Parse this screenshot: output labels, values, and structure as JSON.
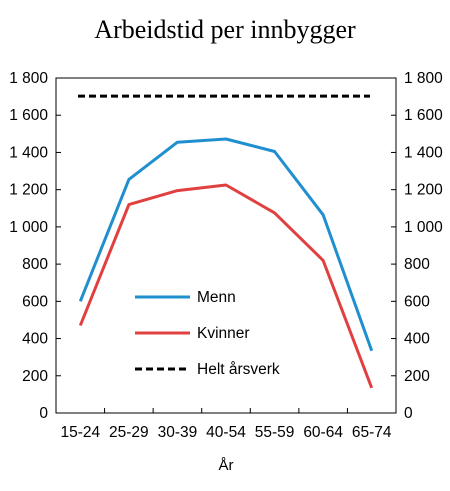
{
  "chart_data": {
    "type": "line",
    "title": "Arbeidstid per innbygger",
    "xlabel": "År",
    "ylabel": "",
    "categories": [
      "15-24",
      "25-29",
      "30-39",
      "40-54",
      "55-59",
      "60-64",
      "65-74"
    ],
    "ylim": [
      0,
      1800
    ],
    "yticks": [
      0,
      200,
      400,
      600,
      800,
      1000,
      1200,
      1400,
      1600,
      1800
    ],
    "ytick_labels": [
      "0",
      "200",
      "400",
      "600",
      "800",
      "1 000",
      "1 200",
      "1 400",
      "1 600",
      "1 800"
    ],
    "secondary_y_axis": true,
    "grid": false,
    "legend_position": "center-left",
    "series": [
      {
        "name": "Menn",
        "color": "#1f8fcf",
        "style": "solid",
        "values": [
          600,
          1255,
          1455,
          1472,
          1405,
          1065,
          335
        ]
      },
      {
        "name": "Kvinner",
        "color": "#e0403f",
        "style": "solid",
        "values": [
          470,
          1120,
          1195,
          1225,
          1075,
          820,
          135
        ]
      },
      {
        "name": "Helt årsverk",
        "color": "#000000",
        "style": "dashed",
        "values": [
          1703,
          1703,
          1703,
          1703,
          1703,
          1703,
          1703
        ]
      }
    ]
  }
}
